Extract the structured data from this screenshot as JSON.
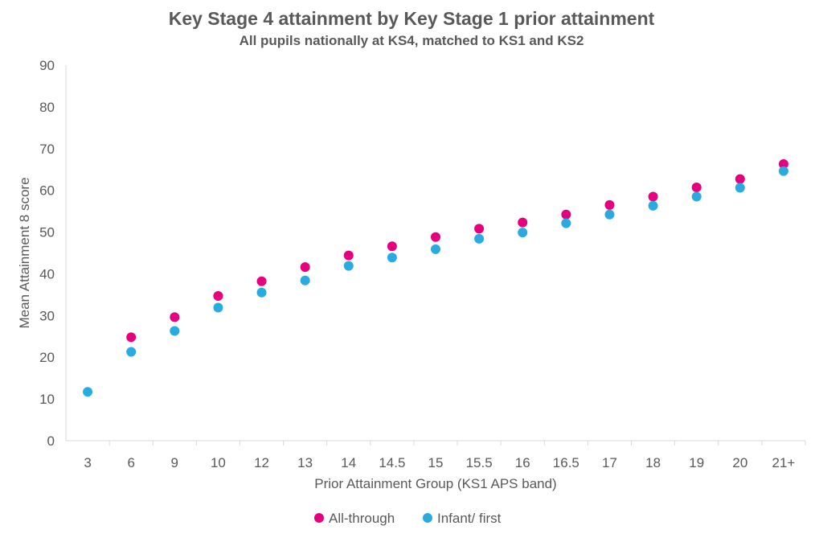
{
  "chart_data": {
    "type": "scatter",
    "title": "Key Stage 4 attainment by Key Stage 1 prior attainment",
    "subtitle": "All pupils nationally at KS4, matched to KS1 and KS2",
    "xlabel": "Prior Attainment Group (KS1 APS band)",
    "ylabel": "Mean Attainment 8 score",
    "ylim": [
      0,
      90
    ],
    "yticks": [
      "0",
      "10",
      "20",
      "30",
      "40",
      "50",
      "60",
      "70",
      "80",
      "90"
    ],
    "grid": false,
    "legend_position": "bottom",
    "categories": [
      "3",
      "6",
      "9",
      "10",
      "12",
      "13",
      "14",
      "14.5",
      "15",
      "15.5",
      "16",
      "16.5",
      "17",
      "18",
      "19",
      "20",
      "21+"
    ],
    "series": [
      {
        "name": "All-through",
        "color": "#e6007e",
        "values": [
          null,
          24.8,
          29.6,
          34.7,
          38.2,
          41.6,
          44.4,
          46.6,
          48.8,
          50.8,
          52.3,
          54.2,
          56.5,
          58.5,
          60.7,
          62.7,
          66.3
        ]
      },
      {
        "name": "Infant/ first",
        "color": "#29abe2",
        "values": [
          11.7,
          21.3,
          26.3,
          31.9,
          35.5,
          38.4,
          41.9,
          43.9,
          45.9,
          48.4,
          49.9,
          52.1,
          54.2,
          56.3,
          58.5,
          60.6,
          64.6
        ]
      }
    ]
  }
}
